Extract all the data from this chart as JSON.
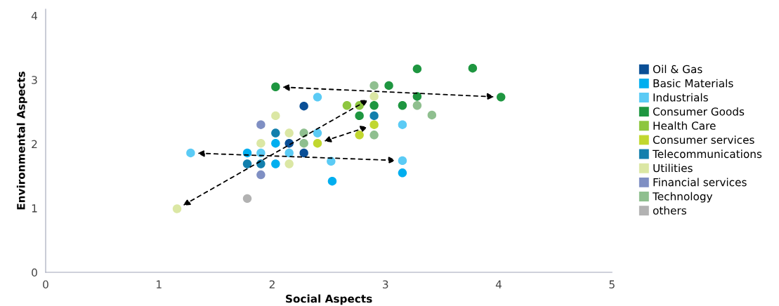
{
  "chart_data": {
    "type": "scatter",
    "xlabel": "Social Aspects",
    "ylabel": "Environmental Aspects",
    "xlim": [
      0,
      5
    ],
    "ylim": [
      0,
      4.1
    ],
    "xticks": [
      0,
      1,
      2,
      3,
      4,
      5
    ],
    "yticks": [
      0,
      1,
      2,
      3,
      4
    ],
    "grid": false,
    "legend": "right",
    "marker": "circle",
    "series": [
      {
        "name": "Oil & Gas",
        "color": "#0a4f96",
        "x": [
          2.28,
          2.15,
          2.28
        ],
        "values": [
          2.59,
          2.01,
          1.86
        ]
      },
      {
        "name": "Basic Materials",
        "color": "#00aeef",
        "x": [
          1.78,
          2.03,
          2.03,
          2.53,
          3.15
        ],
        "values": [
          1.86,
          2.01,
          1.69,
          1.42,
          1.55
        ]
      },
      {
        "name": "Industrials",
        "color": "#5bcbf5",
        "x": [
          1.28,
          1.9,
          2.15,
          2.4,
          2.4,
          2.52,
          3.15,
          3.15
        ],
        "values": [
          1.86,
          1.86,
          1.86,
          2.73,
          2.17,
          1.73,
          2.3,
          1.74
        ]
      },
      {
        "name": "Consumer Goods",
        "color": "#1e9640",
        "x": [
          2.03,
          3.28,
          3.77,
          3.03,
          3.28,
          4.02,
          2.9,
          3.15,
          2.77
        ],
        "values": [
          2.89,
          3.17,
          3.18,
          2.91,
          2.74,
          2.73,
          2.6,
          2.6,
          2.44
        ]
      },
      {
        "name": "Health Care",
        "color": "#8dc63f",
        "x": [
          2.66,
          2.77
        ],
        "values": [
          2.6,
          2.6
        ]
      },
      {
        "name": "Consumer services",
        "color": "#c1d72f",
        "x": [
          2.9,
          2.77,
          2.4
        ],
        "values": [
          2.3,
          2.14,
          2.01
        ]
      },
      {
        "name": "Telecommunications",
        "color": "#127fad",
        "x": [
          2.03,
          1.78,
          1.9,
          2.9
        ],
        "values": [
          2.17,
          1.69,
          1.69,
          2.44
        ]
      },
      {
        "name": "Utilities",
        "color": "#dbe7a4",
        "x": [
          2.03,
          2.15,
          1.9,
          2.15,
          1.16,
          2.9
        ],
        "values": [
          2.44,
          2.17,
          2.01,
          1.69,
          0.99,
          2.74
        ]
      },
      {
        "name": "Financial services",
        "color": "#7f8fc3",
        "x": [
          1.9,
          1.9
        ],
        "values": [
          2.3,
          1.52
        ]
      },
      {
        "name": "Technology",
        "color": "#8fbf8f",
        "x": [
          2.28,
          2.28,
          2.9,
          3.28,
          3.41,
          2.9
        ],
        "values": [
          2.17,
          2.01,
          2.91,
          2.6,
          2.45,
          2.14
        ]
      },
      {
        "name": "others",
        "color": "#b2b2b2",
        "x": [
          1.78
        ],
        "values": [
          1.15
        ]
      }
    ]
  }
}
